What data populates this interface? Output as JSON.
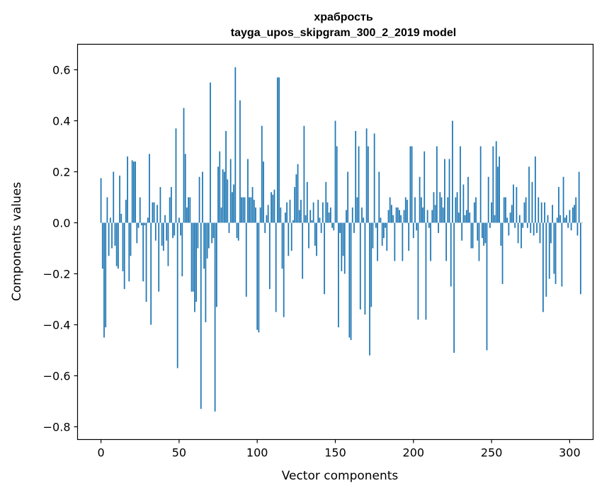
{
  "chart_data": {
    "type": "bar",
    "title": "храбрость",
    "subtitle": "tayga_upos_skipgram_300_2_2019 model",
    "xlabel": "Vector components",
    "ylabel": "Components values",
    "xlim": [
      -15,
      315
    ],
    "ylim": [
      -0.85,
      0.7
    ],
    "xticks": [
      0,
      50,
      100,
      150,
      200,
      250,
      300
    ],
    "yticks": [
      -0.8,
      -0.6,
      -0.4,
      -0.2,
      0.0,
      0.2,
      0.4,
      0.6
    ],
    "ytick_labels": [
      "−0.8",
      "−0.6",
      "−0.4",
      "−0.2",
      "0.0",
      "0.2",
      "0.4",
      "0.6"
    ],
    "bar_color": "#1f77b4",
    "grid": false,
    "values": [
      0.175,
      -0.18,
      -0.45,
      -0.41,
      0.1,
      -0.13,
      0.02,
      -0.1,
      0.2,
      -0.09,
      -0.17,
      -0.18,
      0.185,
      0.035,
      -0.19,
      -0.26,
      0.09,
      0.26,
      -0.23,
      -0.13,
      0.245,
      0.24,
      0.24,
      -0.08,
      -0.02,
      0.1,
      -0.01,
      -0.23,
      -0.01,
      -0.31,
      0.02,
      0.27,
      -0.4,
      0.08,
      0.08,
      -0.07,
      0.07,
      -0.27,
      0.14,
      -0.09,
      -0.11,
      0.03,
      -0.07,
      -0.17,
      0.1,
      0.14,
      -0.06,
      -0.05,
      0.37,
      -0.57,
      0.02,
      -0.05,
      -0.21,
      0.45,
      0.27,
      0.06,
      0.1,
      0.1,
      -0.27,
      -0.27,
      -0.35,
      -0.31,
      -0.1,
      0.18,
      -0.73,
      0.2,
      -0.18,
      -0.39,
      -0.14,
      -0.1,
      0.55,
      -0.08,
      -0.06,
      -0.74,
      -0.33,
      0.22,
      0.28,
      0.06,
      0.21,
      0.2,
      0.36,
      0.17,
      -0.04,
      0.25,
      0.12,
      0.15,
      0.61,
      -0.06,
      -0.07,
      0.48,
      0.1,
      0.1,
      0.1,
      -0.29,
      0.25,
      0.1,
      0.1,
      0.14,
      0.09,
      0.06,
      -0.42,
      -0.43,
      0.06,
      0.38,
      0.24,
      -0.04,
      0.03,
      0.07,
      -0.26,
      0.12,
      0.11,
      0.13,
      -0.35,
      0.57,
      0.57,
      0.06,
      -0.18,
      -0.37,
      0.04,
      0.08,
      -0.13,
      0.09,
      -0.11,
      0.01,
      0.14,
      0.19,
      0.23,
      0.05,
      0.09,
      -0.22,
      0.38,
      0.03,
      0.16,
      -0.1,
      0.05,
      0.01,
      0.08,
      -0.09,
      -0.13,
      0.09,
      0.02,
      -0.04,
      0.08,
      -0.28,
      0.16,
      0.08,
      0.04,
      0.06,
      -0.02,
      -0.03,
      0.4,
      0.3,
      -0.41,
      -0.04,
      -0.19,
      -0.13,
      -0.2,
      0.05,
      0.2,
      -0.45,
      -0.46,
      0.06,
      -0.04,
      0.36,
      0.1,
      0.3,
      -0.34,
      0.06,
      0.02,
      -0.36,
      0.37,
      0.3,
      -0.52,
      -0.33,
      -0.1,
      0.35,
      -0.02,
      -0.15,
      0.2,
      0.02,
      -0.09,
      -0.06,
      -0.02,
      -0.11,
      0.05,
      0.1,
      0.07,
      0.03,
      -0.15,
      0.06,
      0.06,
      0.05,
      0.03,
      -0.15,
      0.05,
      0.1,
      0.09,
      -0.11,
      0.3,
      0.3,
      -0.06,
      0.1,
      -0.03,
      -0.38,
      0.18,
      0.1,
      0.06,
      0.28,
      -0.38,
      0.05,
      -0.02,
      -0.15,
      0.05,
      0.12,
      0.07,
      0.3,
      -0.04,
      0.12,
      0.1,
      0.06,
      0.25,
      -0.15,
      0.1,
      0.25,
      -0.25,
      0.4,
      -0.51,
      0.1,
      0.12,
      0.04,
      0.3,
      -0.07,
      0.15,
      0.03,
      0.05,
      0.18,
      0.04,
      -0.1,
      -0.1,
      0.08,
      0.1,
      -0.07,
      -0.15,
      0.3,
      -0.06,
      -0.09,
      -0.08,
      -0.5,
      0.18,
      -0.02,
      0.08,
      0.3,
      0.03,
      0.32,
      0.22,
      0.26,
      -0.09,
      -0.24,
      0.1,
      0.1,
      0.02,
      -0.05,
      0.04,
      0.07,
      0.15,
      -0.02,
      0.14,
      -0.08,
      0.03,
      -0.1,
      -0.02,
      0.08,
      0.1,
      -0.02,
      0.22,
      -0.04,
      0.16,
      -0.05,
      0.26,
      -0.04,
      0.1,
      -0.08,
      0.08,
      -0.35,
      0.08,
      -0.29,
      0.03,
      -0.22,
      -0.08,
      0.07,
      -0.2,
      -0.24,
      0.02,
      0.14,
      0.03,
      -0.25,
      0.18,
      0.02,
      0.03,
      -0.02,
      0.05,
      -0.03,
      0.06,
      0.07,
      0.1,
      -0.05,
      0.2,
      -0.28,
      0.0
    ]
  }
}
